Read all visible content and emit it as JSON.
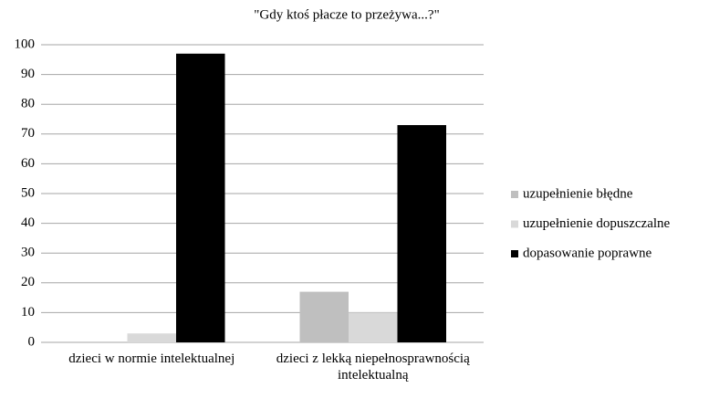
{
  "chart_data": {
    "type": "bar",
    "title": "\"Gdy ktoś płacze to przeżywa...?\"",
    "categories": [
      "dzieci w normie intelektualnej",
      "dzieci z lekką niepełnosprawnością intelektualną"
    ],
    "series": [
      {
        "name": "uzupełnienie błędne",
        "color": "#bfbfbf",
        "values": [
          0,
          17
        ]
      },
      {
        "name": "uzupełnienie dopuszczalne",
        "color": "#d9d9d9",
        "values": [
          3,
          10
        ]
      },
      {
        "name": "dopasowanie poprawne",
        "color": "#000000",
        "values": [
          97,
          73
        ]
      }
    ],
    "ylim": [
      0,
      100
    ],
    "yticks": [
      0,
      10,
      20,
      30,
      40,
      50,
      60,
      70,
      80,
      90,
      100
    ],
    "grid": true,
    "legend": "right"
  }
}
